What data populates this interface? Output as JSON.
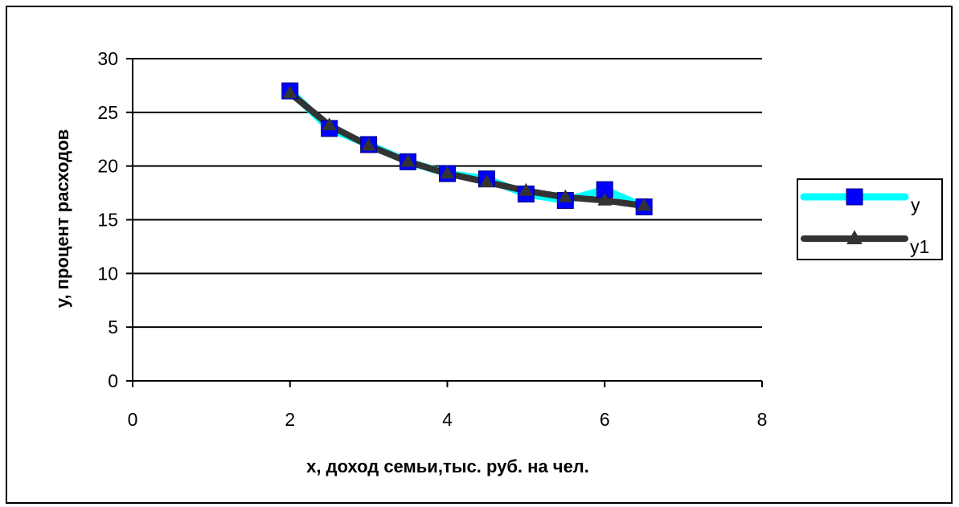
{
  "chart_data": {
    "type": "line",
    "title": "",
    "xlabel": "x, доход семьи,тыс. руб. на чел.",
    "ylabel": "y, процент расходов",
    "xlim": [
      0,
      8
    ],
    "ylim": [
      0,
      30
    ],
    "xticks": [
      0,
      2,
      4,
      6,
      8
    ],
    "yticks": [
      0,
      5,
      10,
      15,
      20,
      25,
      30
    ],
    "grid": "horizontal",
    "legend_position": "right",
    "x": [
      2,
      2.5,
      3,
      3.5,
      4,
      4.5,
      5,
      5.5,
      6,
      6.5
    ],
    "series": [
      {
        "name": "y",
        "color": "#00ffff",
        "marker": "square",
        "marker_color": "#0000ff",
        "values": [
          27.0,
          23.5,
          22.0,
          20.4,
          19.3,
          18.8,
          17.4,
          16.8,
          17.8,
          16.2
        ]
      },
      {
        "name": "y1",
        "color": "#333333",
        "marker": "triangle",
        "marker_color": "#333333",
        "values": [
          26.8,
          23.8,
          21.9,
          20.4,
          19.3,
          18.5,
          17.7,
          17.1,
          16.8,
          16.3
        ]
      }
    ]
  }
}
